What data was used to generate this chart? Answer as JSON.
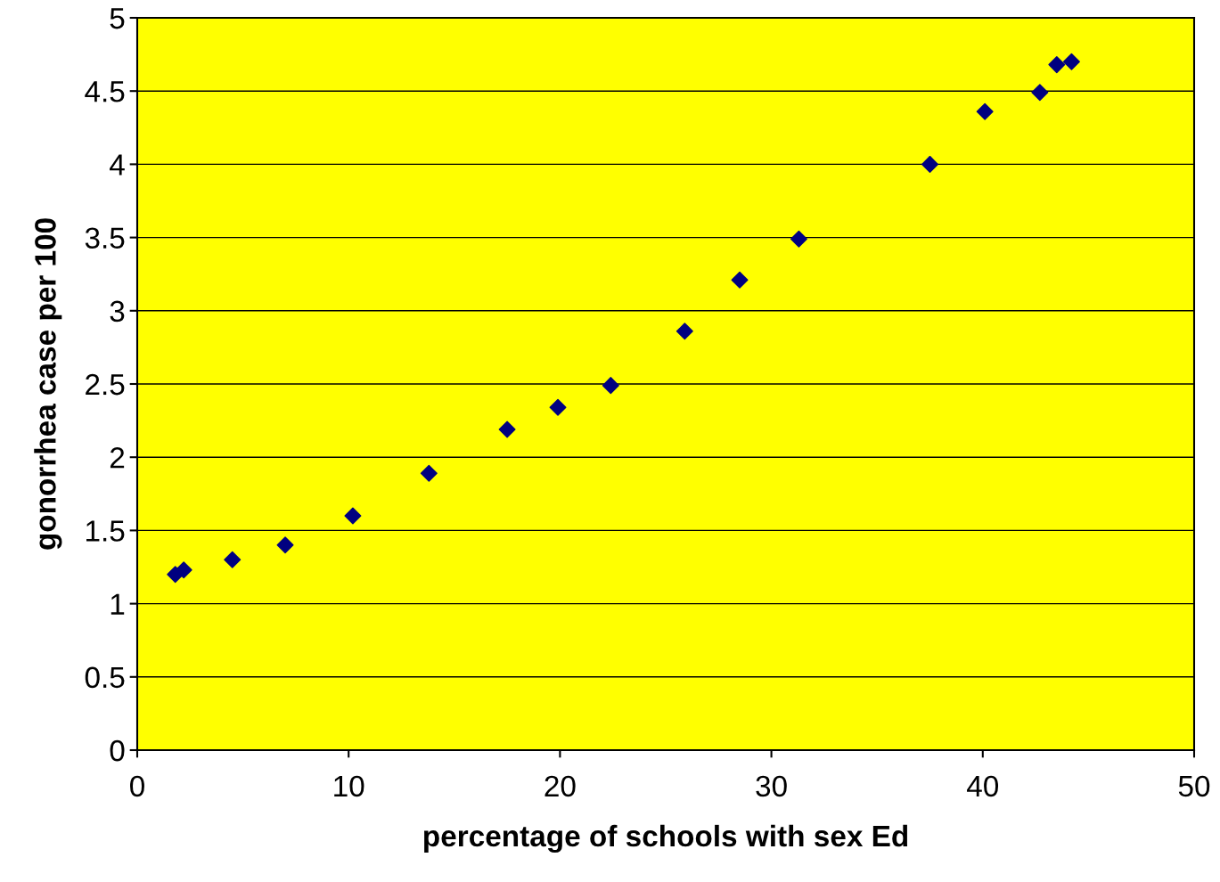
{
  "chart_data": {
    "type": "scatter",
    "xlabel": "percentage of schools with sex Ed",
    "ylabel": "gonorrhea case per 100",
    "x": [
      1.8,
      2.2,
      4.5,
      7.0,
      10.2,
      13.8,
      17.5,
      19.9,
      22.4,
      25.9,
      28.5,
      31.3,
      37.5,
      40.1,
      42.7,
      43.5,
      44.2
    ],
    "series": [
      {
        "color": "#000080",
        "values": [
          1.2,
          1.23,
          1.3,
          1.4,
          1.6,
          1.89,
          2.19,
          2.34,
          2.49,
          2.86,
          3.21,
          3.49,
          4.0,
          4.36,
          4.49,
          4.68,
          4.7
        ]
      }
    ],
    "xlim": [
      0,
      50
    ],
    "xticks": [
      0,
      10,
      20,
      30,
      40,
      50
    ],
    "ylim": [
      0,
      5
    ],
    "yticks": [
      0,
      0.5,
      1,
      1.5,
      2,
      2.5,
      3,
      3.5,
      4,
      4.5,
      5
    ],
    "grid": "y",
    "marker": "diamond"
  }
}
